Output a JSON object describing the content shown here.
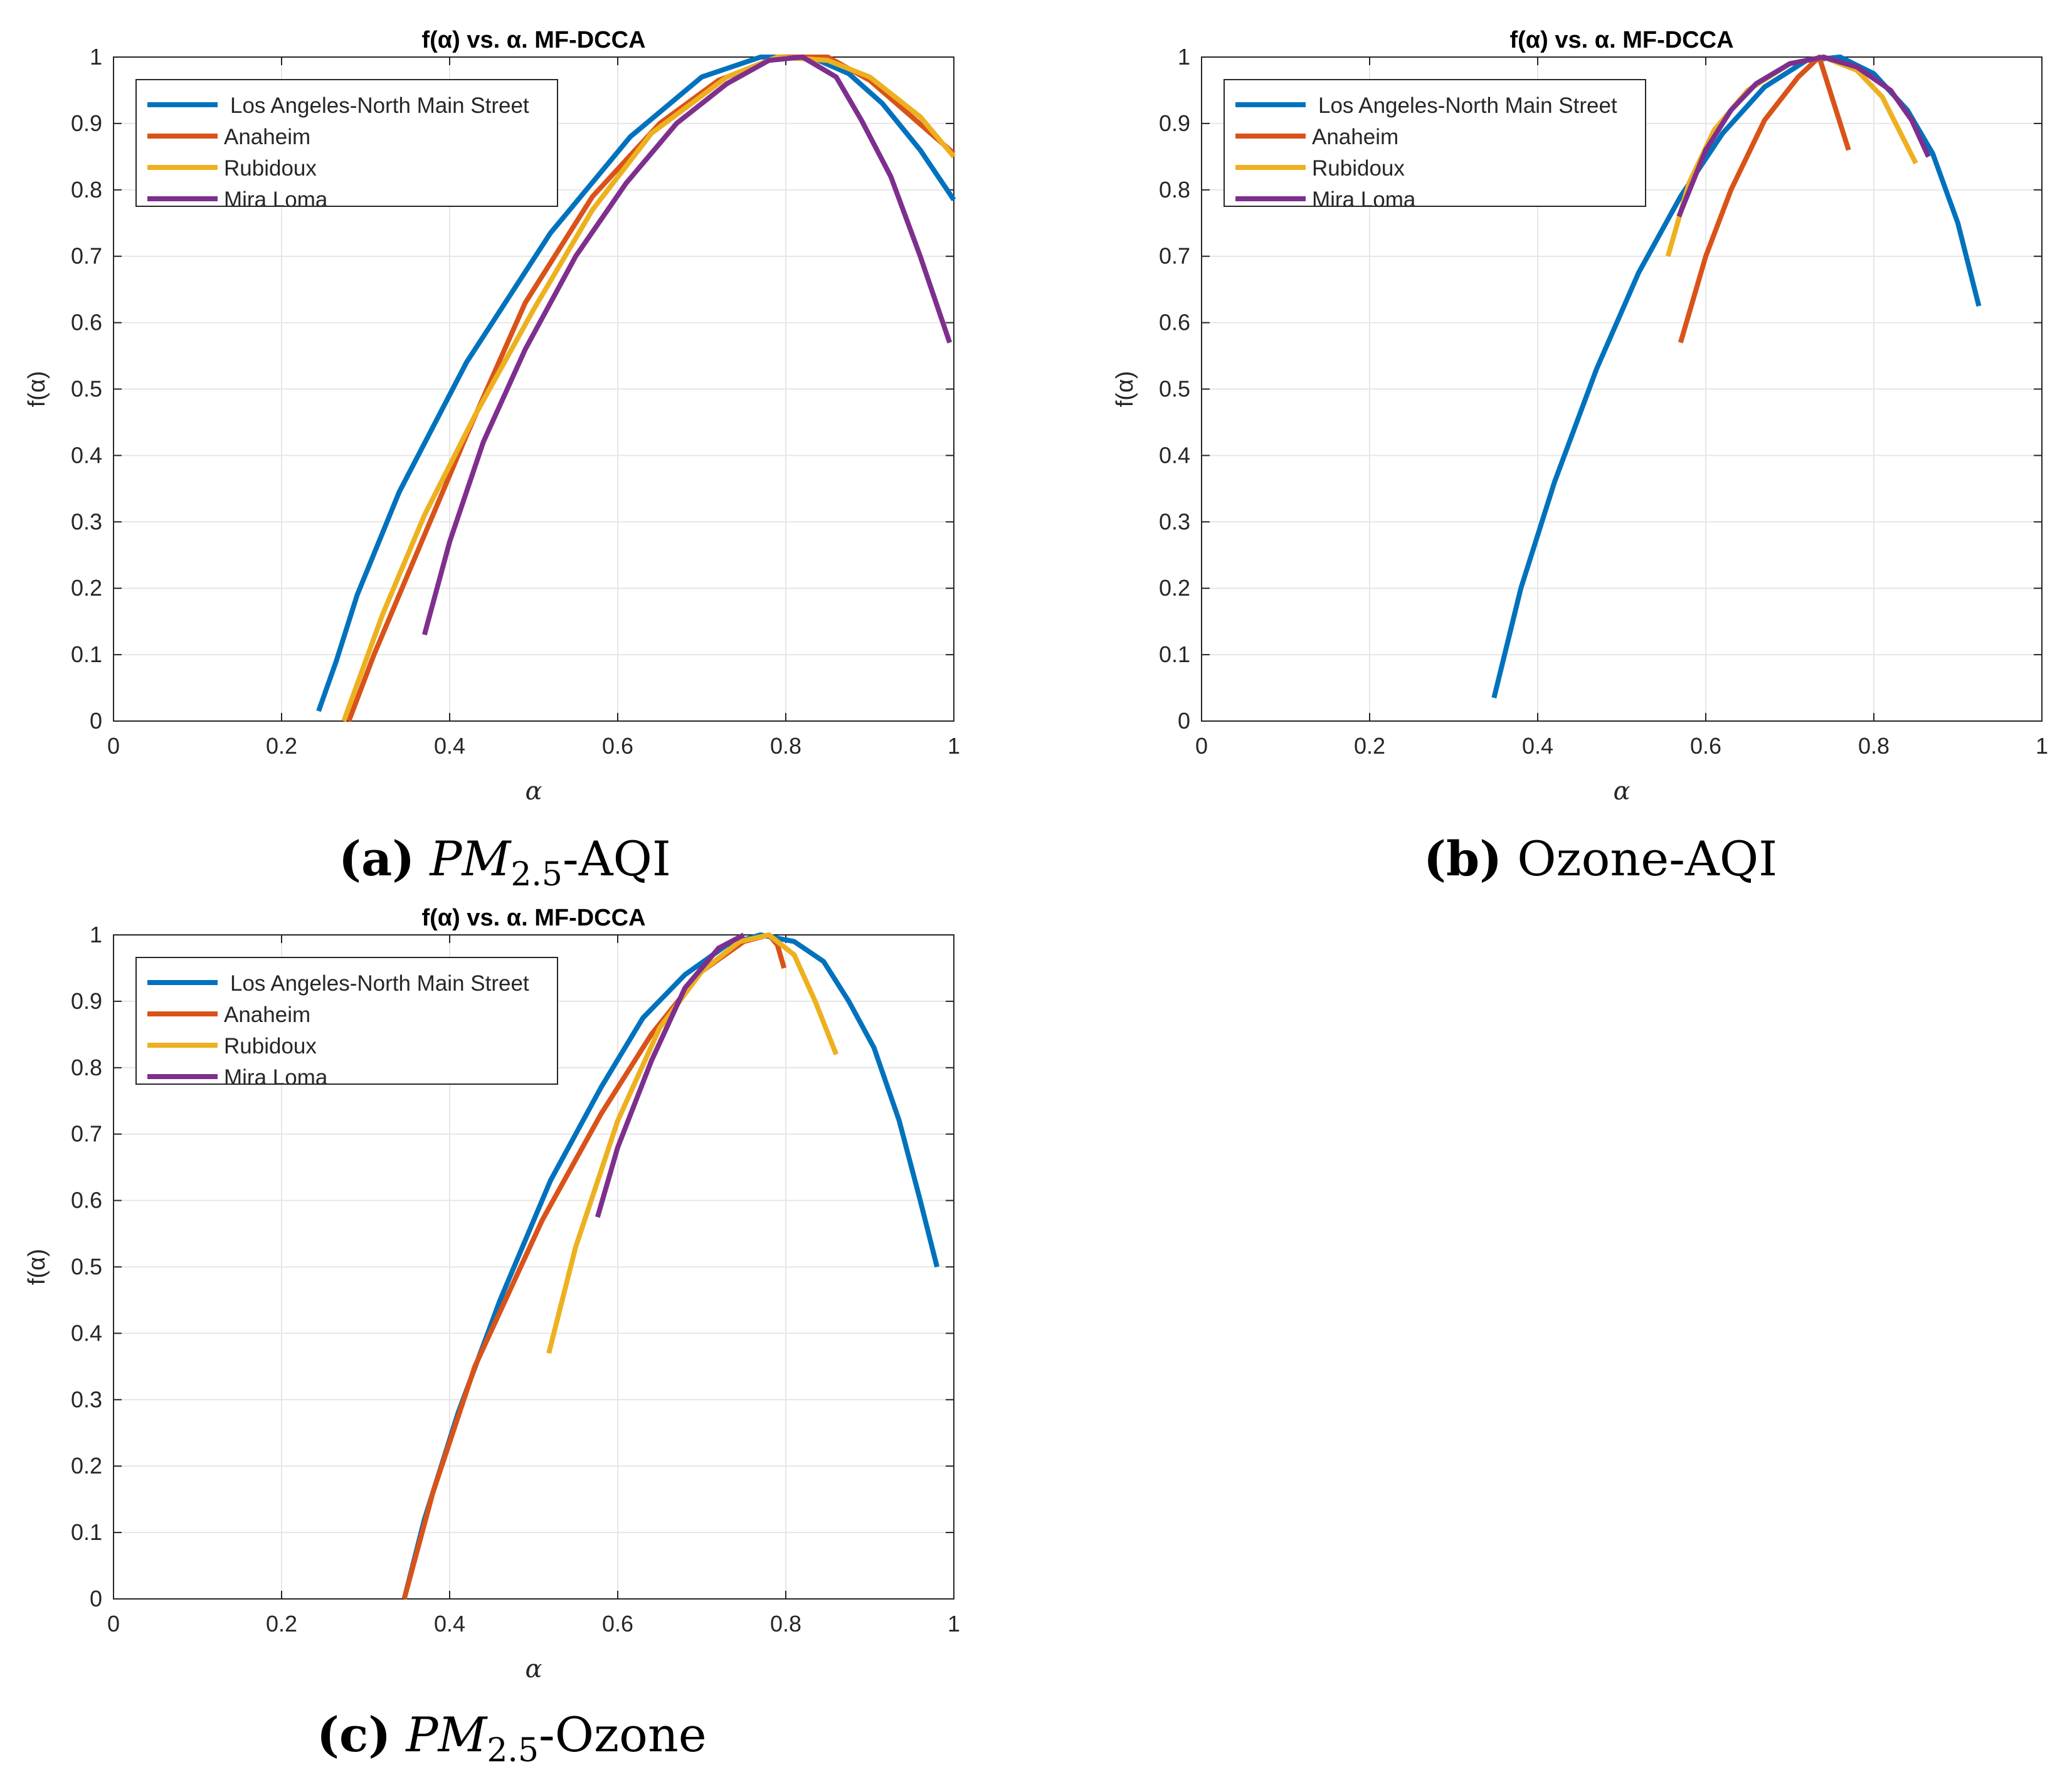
{
  "colors": {
    "series": [
      "#0072BD",
      "#D95319",
      "#EDB120",
      "#7E2F8E"
    ],
    "grid": "#e6e6e6",
    "axis": "#262626"
  },
  "captions": [
    {
      "label": "(a)",
      "text_main": "PM",
      "text_sub": "2.5",
      "text_rest": "-AQI"
    },
    {
      "label": "(b)",
      "text_main": "",
      "text_sub": "",
      "text_rest": " Ozone-AQI"
    },
    {
      "label": "(c)",
      "text_main": "PM",
      "text_sub": "2.5",
      "text_rest": "-Ozone"
    }
  ],
  "chart_data": [
    {
      "type": "line",
      "title": "f(α) vs. α. MF-DCCA",
      "xlabel": "α",
      "ylabel": "f(α)",
      "xlim": [
        0,
        1
      ],
      "ylim": [
        0,
        1
      ],
      "xticks": [
        "0",
        "0.2",
        "0.4",
        "0.6",
        "0.8",
        "1"
      ],
      "yticks": [
        "0",
        "0.1",
        "0.2",
        "0.3",
        "0.4",
        "0.5",
        "0.6",
        "0.7",
        "0.8",
        "0.9",
        "1"
      ],
      "grid": true,
      "legend": "top-left",
      "series": [
        {
          "name": "Los Angeles-North Main Street",
          "x": [
            0.244,
            0.265,
            0.29,
            0.34,
            0.42,
            0.52,
            0.615,
            0.7,
            0.77,
            0.83,
            0.875,
            0.915,
            0.96,
            1.0
          ],
          "y": [
            0.015,
            0.09,
            0.19,
            0.345,
            0.54,
            0.735,
            0.88,
            0.97,
            1.0,
            1.0,
            0.975,
            0.93,
            0.86,
            0.785
          ]
        },
        {
          "name": "Anaheim",
          "x": [
            0.28,
            0.31,
            0.35,
            0.42,
            0.49,
            0.57,
            0.65,
            0.72,
            0.79,
            0.85,
            0.9,
            0.95,
            1.0
          ],
          "y": [
            0.0,
            0.1,
            0.22,
            0.43,
            0.63,
            0.79,
            0.9,
            0.965,
            1.0,
            1.0,
            0.965,
            0.91,
            0.855
          ]
        },
        {
          "name": "Rubidoux",
          "x": [
            0.274,
            0.32,
            0.37,
            0.43,
            0.5,
            0.57,
            0.64,
            0.73,
            0.79,
            0.85,
            0.9,
            0.96,
            1.0
          ],
          "y": [
            0.0,
            0.16,
            0.31,
            0.46,
            0.62,
            0.77,
            0.885,
            0.97,
            1.0,
            0.995,
            0.97,
            0.91,
            0.85
          ]
        },
        {
          "name": "Mira Loma",
          "x": [
            0.37,
            0.4,
            0.44,
            0.49,
            0.55,
            0.61,
            0.67,
            0.73,
            0.78,
            0.82,
            0.86,
            0.89,
            0.925,
            0.96,
            0.995
          ],
          "y": [
            0.13,
            0.27,
            0.42,
            0.56,
            0.7,
            0.81,
            0.9,
            0.96,
            0.995,
            1.0,
            0.97,
            0.905,
            0.82,
            0.7,
            0.57
          ]
        }
      ]
    },
    {
      "type": "line",
      "title": "f(α) vs. α. MF-DCCA",
      "xlabel": "α",
      "ylabel": "f(α)",
      "xlim": [
        0,
        1
      ],
      "ylim": [
        0,
        1
      ],
      "xticks": [
        "0",
        "0.2",
        "0.4",
        "0.6",
        "0.8",
        "1"
      ],
      "yticks": [
        "0",
        "0.1",
        "0.2",
        "0.3",
        "0.4",
        "0.5",
        "0.6",
        "0.7",
        "0.8",
        "0.9",
        "1"
      ],
      "grid": true,
      "legend": "top-left",
      "series": [
        {
          "name": "Los Angeles-North Main Street",
          "x": [
            0.348,
            0.38,
            0.42,
            0.47,
            0.52,
            0.57,
            0.62,
            0.67,
            0.72,
            0.76,
            0.8,
            0.84,
            0.87,
            0.9,
            0.925
          ],
          "y": [
            0.035,
            0.2,
            0.36,
            0.53,
            0.675,
            0.79,
            0.885,
            0.955,
            0.995,
            1.0,
            0.975,
            0.92,
            0.855,
            0.75,
            0.625
          ]
        },
        {
          "name": "Anaheim",
          "x": [
            0.57,
            0.6,
            0.63,
            0.67,
            0.71,
            0.735,
            0.75,
            0.77
          ],
          "y": [
            0.57,
            0.7,
            0.8,
            0.905,
            0.97,
            1.0,
            0.94,
            0.86
          ]
        },
        {
          "name": "Rubidoux",
          "x": [
            0.555,
            0.58,
            0.61,
            0.65,
            0.7,
            0.74,
            0.78,
            0.81,
            0.83,
            0.85
          ],
          "y": [
            0.7,
            0.81,
            0.89,
            0.95,
            0.99,
            1.0,
            0.98,
            0.94,
            0.89,
            0.84
          ]
        },
        {
          "name": "Mira Loma",
          "x": [
            0.568,
            0.6,
            0.63,
            0.66,
            0.7,
            0.74,
            0.78,
            0.82,
            0.845,
            0.865
          ],
          "y": [
            0.76,
            0.86,
            0.92,
            0.96,
            0.99,
            1.0,
            0.985,
            0.95,
            0.905,
            0.85
          ]
        }
      ]
    },
    {
      "type": "line",
      "title": "f(α) vs. α. MF-DCCA",
      "xlabel": "α",
      "ylabel": "f(α)",
      "xlim": [
        0,
        1
      ],
      "ylim": [
        0,
        1
      ],
      "xticks": [
        "0",
        "0.2",
        "0.4",
        "0.6",
        "0.8",
        "1"
      ],
      "yticks": [
        "0",
        "0.1",
        "0.2",
        "0.3",
        "0.4",
        "0.5",
        "0.6",
        "0.7",
        "0.8",
        "0.9",
        "1"
      ],
      "grid": true,
      "legend": "top-left",
      "series": [
        {
          "name": "Los Angeles-North Main Street",
          "x": [
            0.346,
            0.37,
            0.41,
            0.46,
            0.52,
            0.58,
            0.63,
            0.68,
            0.73,
            0.77,
            0.81,
            0.845,
            0.875,
            0.905,
            0.935,
            0.96,
            0.98
          ],
          "y": [
            0.0,
            0.12,
            0.28,
            0.45,
            0.63,
            0.77,
            0.875,
            0.94,
            0.985,
            1.0,
            0.99,
            0.96,
            0.9,
            0.83,
            0.72,
            0.6,
            0.5
          ]
        },
        {
          "name": "Anaheim",
          "x": [
            0.346,
            0.38,
            0.43,
            0.51,
            0.58,
            0.64,
            0.7,
            0.75,
            0.78,
            0.79,
            0.798
          ],
          "y": [
            0.0,
            0.16,
            0.35,
            0.57,
            0.73,
            0.85,
            0.945,
            0.99,
            1.0,
            0.985,
            0.95
          ]
        },
        {
          "name": "Rubidoux",
          "x": [
            0.518,
            0.55,
            0.6,
            0.65,
            0.7,
            0.745,
            0.78,
            0.81,
            0.835,
            0.86
          ],
          "y": [
            0.37,
            0.53,
            0.72,
            0.86,
            0.945,
            0.99,
            1.0,
            0.97,
            0.9,
            0.82
          ]
        },
        {
          "name": "Mira Loma",
          "x": [
            0.576,
            0.6,
            0.64,
            0.68,
            0.72,
            0.75
          ],
          "y": [
            0.575,
            0.68,
            0.81,
            0.92,
            0.98,
            1.0
          ]
        }
      ]
    }
  ]
}
